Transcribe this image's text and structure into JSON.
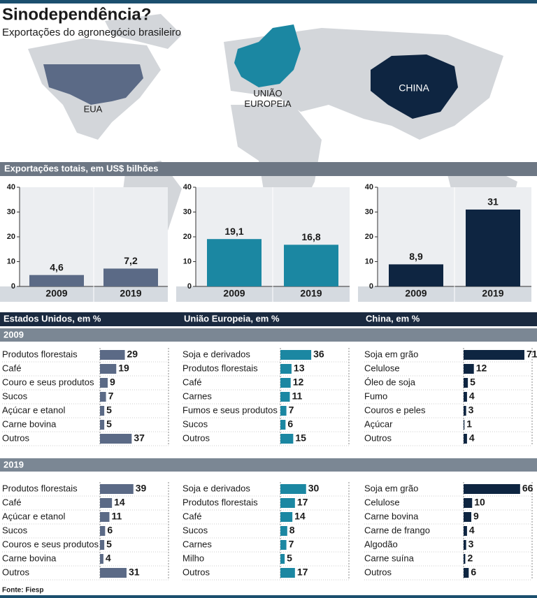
{
  "title": "Sinodependência?",
  "subtitle": "Exportações do agronegócio brasileiro",
  "map_labels": {
    "usa": "EUA",
    "eu": "UNIÃO EUROPEIA",
    "china": "CHINA"
  },
  "totals_header": "Exportações totais, em US$ bilhões",
  "share_headers": [
    "Estados Unidos, em %",
    "União Europeia, em %",
    "China, em %"
  ],
  "years": [
    "2009",
    "2019"
  ],
  "source": "Fonte: Fiesp",
  "chart_data": [
    {
      "type": "bar",
      "categories": [
        "2009",
        "2019"
      ],
      "values": [
        4.6,
        7.2
      ],
      "value_labels": [
        "4,6",
        "7,2"
      ],
      "color": "#5b6a86",
      "ylim": [
        0,
        40
      ],
      "yticks": [
        0,
        10,
        20,
        30,
        40
      ]
    },
    {
      "type": "bar",
      "categories": [
        "2009",
        "2019"
      ],
      "values": [
        19.1,
        16.8
      ],
      "value_labels": [
        "19,1",
        "16,8"
      ],
      "color": "#1b87a2",
      "ylim": [
        0,
        40
      ],
      "yticks": [
        0,
        10,
        20,
        30,
        40
      ]
    },
    {
      "type": "bar",
      "categories": [
        "2009",
        "2019"
      ],
      "values": [
        8.9,
        31
      ],
      "value_labels": [
        "8,9",
        "31"
      ],
      "color": "#0e2541",
      "ylim": [
        0,
        40
      ],
      "yticks": [
        0,
        10,
        20,
        30,
        40
      ]
    },
    {
      "type": "barh",
      "categories": [
        "Produtos florestais",
        "Café",
        "Couro e seus produtos",
        "Sucos",
        "Açúcar e etanol",
        "Carne bovina",
        "Outros"
      ],
      "values": [
        29,
        19,
        9,
        7,
        5,
        5,
        37
      ],
      "color": "#5b6a86",
      "xlim": [
        0,
        80
      ]
    },
    {
      "type": "barh",
      "categories": [
        "Soja e derivados",
        "Produtos florestais",
        "Café",
        "Carnes",
        "Fumos e seus produtos",
        "Sucos",
        "Outros"
      ],
      "values": [
        36,
        13,
        12,
        11,
        7,
        6,
        15
      ],
      "color": "#1b87a2",
      "xlim": [
        0,
        80
      ]
    },
    {
      "type": "barh",
      "categories": [
        "Soja em grão",
        "Celulose",
        "Óleo de soja",
        "Fumo",
        "Couros e peles",
        "Açúcar",
        "Outros"
      ],
      "values": [
        71,
        12,
        5,
        4,
        3,
        1,
        4
      ],
      "color": "#0e2541",
      "xlim": [
        0,
        80
      ]
    },
    {
      "type": "barh",
      "categories": [
        "Produtos florestais",
        "Café",
        "Açúcar e etanol",
        "Sucos",
        "Couros e seus produtos",
        "Carne bovina",
        "Outros"
      ],
      "values": [
        39,
        14,
        11,
        6,
        5,
        4,
        31
      ],
      "color": "#5b6a86",
      "xlim": [
        0,
        80
      ]
    },
    {
      "type": "barh",
      "categories": [
        "Soja e derivados",
        "Produtos florestais",
        "Café",
        "Sucos",
        "Carnes",
        "Milho",
        "Outros"
      ],
      "values": [
        30,
        17,
        14,
        8,
        7,
        5,
        17
      ],
      "color": "#1b87a2",
      "xlim": [
        0,
        80
      ]
    },
    {
      "type": "barh",
      "categories": [
        "Soja em grão",
        "Celulose",
        "Carne bovina",
        "Carne de frango",
        "Algodão",
        "Carne suína",
        "Outros"
      ],
      "values": [
        66,
        10,
        9,
        4,
        3,
        2,
        6
      ],
      "color": "#0e2541",
      "xlim": [
        0,
        80
      ]
    }
  ]
}
